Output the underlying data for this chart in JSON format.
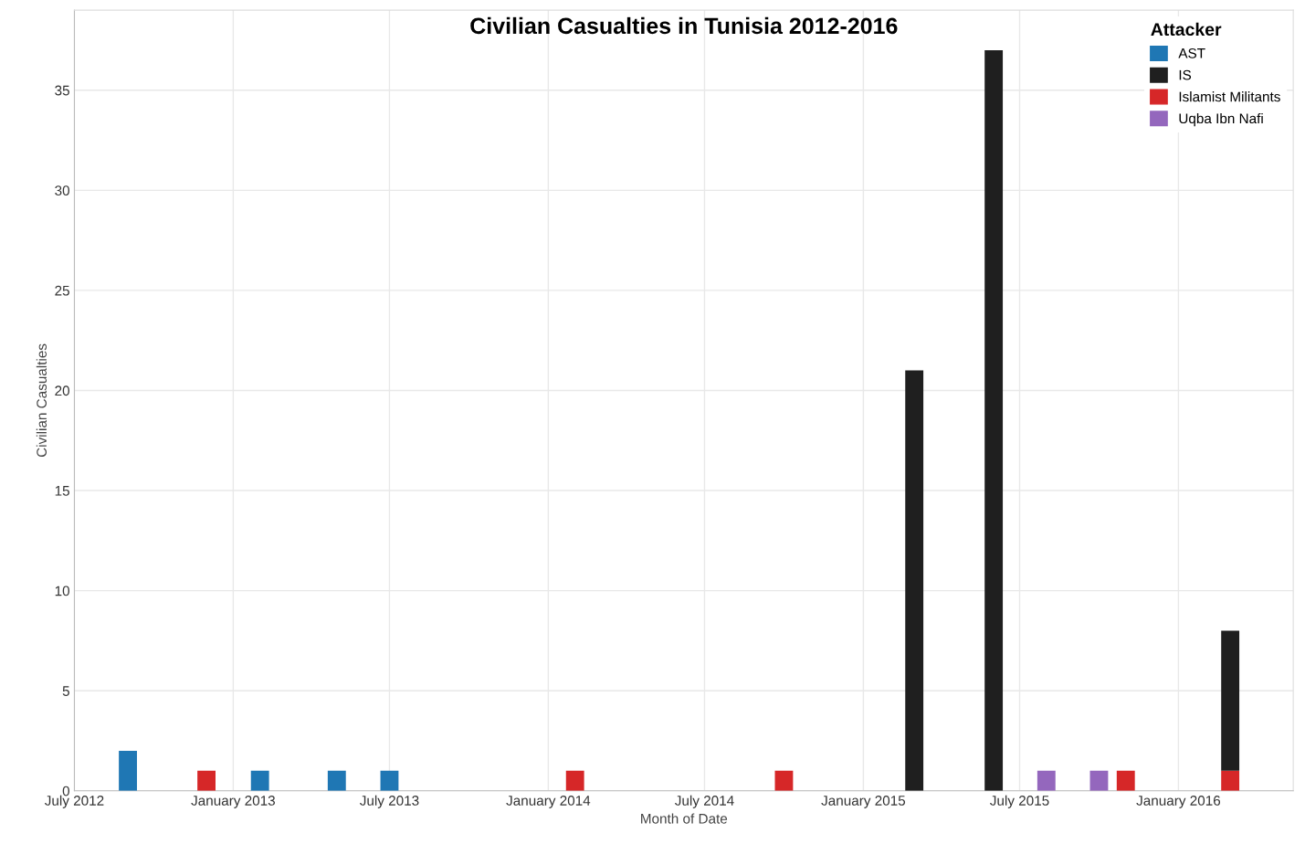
{
  "chart_data": {
    "type": "bar",
    "title": "Civilian Casualties in Tunisia 2012-2016",
    "xlabel": "Month of Date",
    "ylabel": "Civilian Casualties",
    "legend_title": "Attacker",
    "stacked": true,
    "x": [
      "2012-09",
      "2012-12",
      "2013-02",
      "2013-05",
      "2013-07",
      "2014-02",
      "2014-10",
      "2015-03",
      "2015-06",
      "2015-08",
      "2015-10",
      "2015-11",
      "2016-03"
    ],
    "series": [
      {
        "name": "AST",
        "color": "#1f77b4",
        "values": [
          2,
          null,
          1,
          1,
          1,
          null,
          null,
          null,
          null,
          null,
          null,
          null,
          null
        ]
      },
      {
        "name": "Islamist Militants",
        "color": "#d62728",
        "values": [
          null,
          1,
          null,
          null,
          null,
          1,
          1,
          null,
          null,
          null,
          null,
          1,
          1
        ]
      },
      {
        "name": "IS",
        "color": "#1f1f1f",
        "values": [
          null,
          null,
          null,
          null,
          null,
          null,
          null,
          21,
          37,
          null,
          null,
          null,
          7
        ]
      },
      {
        "name": "Uqba Ibn Nafi",
        "color": "#9467bd",
        "values": [
          null,
          null,
          null,
          null,
          null,
          null,
          null,
          null,
          null,
          1,
          1,
          null,
          null
        ]
      }
    ],
    "xlim": [
      "2012-07",
      "2016-05-13"
    ],
    "xticks": [
      {
        "value": "2012-07",
        "label": "July 2012"
      },
      {
        "value": "2013-01",
        "label": "January 2013"
      },
      {
        "value": "2013-07",
        "label": "July 2013"
      },
      {
        "value": "2014-01",
        "label": "January 2014"
      },
      {
        "value": "2014-07",
        "label": "July 2014"
      },
      {
        "value": "2015-01",
        "label": "January 2015"
      },
      {
        "value": "2015-07",
        "label": "July 2015"
      },
      {
        "value": "2016-01",
        "label": "January 2016"
      }
    ],
    "ylim": [
      0,
      39
    ],
    "yticks": [
      0,
      5,
      10,
      15,
      20,
      25,
      30,
      35
    ],
    "grid": true,
    "legend": "top right"
  }
}
